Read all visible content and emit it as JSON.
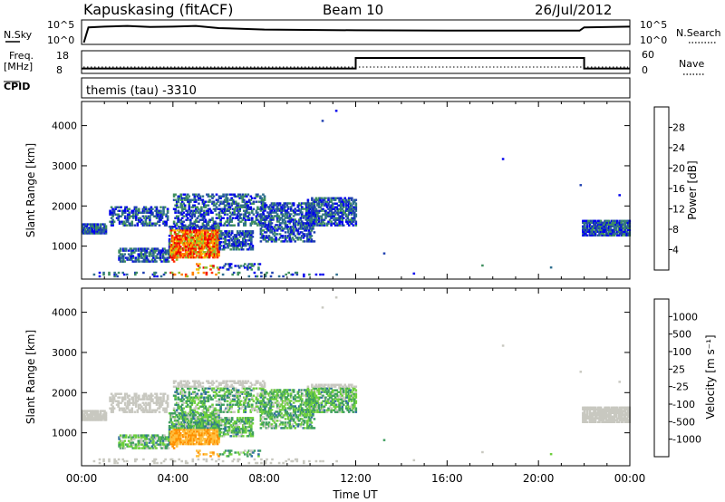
{
  "header": {
    "station": "Kapuskasing (fitACF)",
    "beam": "Beam 10",
    "date": "26/Jul/2012"
  },
  "side_labels": {
    "nsky": "N.Sky",
    "freq": "Freq.",
    "mhz": "[MHz]",
    "cpid": "CPID",
    "nsearch": "N.Search",
    "nave": "Nave",
    "nsky_ticks": [
      "10^5",
      "10^0"
    ],
    "freq_ticks": [
      "18",
      "8"
    ],
    "nave_ticks": [
      "60",
      "0"
    ]
  },
  "cpid_text": "themis (tau) -3310",
  "chart_data": [
    {
      "type": "line",
      "name": "noise-sky-panel",
      "ylabel": "N.Sky",
      "right_label": "N.Search",
      "series": [
        {
          "name": "N.Sky",
          "x": [
            0.1,
            0.3,
            1.0,
            2.0,
            3.0,
            4.0,
            5.0,
            6.0,
            8.0,
            12.0,
            16.0,
            20.0,
            21.8,
            22.0,
            24.0
          ],
          "y": [
            0,
            4.2,
            4.4,
            4.6,
            4.3,
            4.4,
            4.6,
            4.0,
            3.6,
            3.4,
            3.3,
            3.3,
            3.3,
            4.2,
            4.4
          ]
        }
      ]
    },
    {
      "type": "line",
      "name": "frequency-panel",
      "ylabel": "Freq. [MHz]",
      "right_label": "Nave",
      "yticks": [
        8,
        18
      ],
      "series": [
        {
          "name": "Nave",
          "x": [
            0,
            12.0,
            12.0,
            22.0,
            22.0,
            24.0
          ],
          "y": [
            10,
            10,
            45,
            45,
            10,
            10
          ]
        }
      ]
    },
    {
      "type": "heatmap",
      "name": "power-panel",
      "ylabel": "Slant Range [km]",
      "colorbar_label": "Power [dB]",
      "colorbar_ticks": [
        "28",
        "24",
        "20",
        "16",
        "12",
        "8",
        "4"
      ],
      "colors": [
        "#0000ee",
        "#1f3fb0",
        "#2f6f8f",
        "#3f8f5f",
        "#8fbf2f",
        "#ffbf00",
        "#ff8000",
        "#ff3000",
        "#ee0000"
      ],
      "yticks": [
        "4000",
        "3000",
        "2000",
        "1000"
      ],
      "xlim": [
        0,
        24
      ],
      "ylim": [
        180,
        4600
      ]
    },
    {
      "type": "heatmap",
      "name": "velocity-panel",
      "ylabel": "Slant Range [km]",
      "colorbar_label": "Velocity [m s⁻¹]",
      "colorbar_ticks": [
        "1000",
        "500",
        "100",
        "25",
        "-25",
        "-100",
        "-500",
        "-1000"
      ],
      "colors": [
        "#1a3fa0",
        "#2f6f9f",
        "#3f9f5f",
        "#6fcf3f",
        "#c8c8c0",
        "#ffbf3f",
        "#ff8f00",
        "#ff5f00",
        "#ee0000"
      ],
      "yticks": [
        "4000",
        "3000",
        "2000",
        "1000"
      ],
      "xlim": [
        0,
        24
      ],
      "ylim": [
        180,
        4600
      ]
    }
  ],
  "x_axis": {
    "ticks": [
      "00:00",
      "04:00",
      "08:00",
      "12:00",
      "16:00",
      "20:00",
      "00:00"
    ],
    "label": "Time UT"
  }
}
